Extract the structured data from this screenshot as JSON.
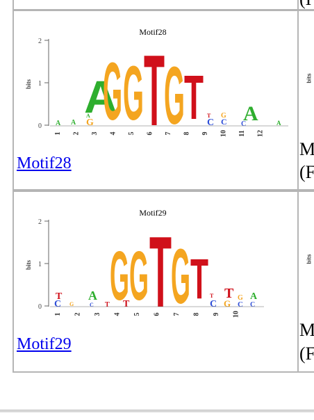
{
  "rows": [
    {
      "logo_title": "Motif28",
      "link_label": "Motif28",
      "axis_label": "bits",
      "y_ticks": [
        "0",
        "1",
        "2"
      ],
      "positions": [
        "1",
        "2",
        "3",
        "4",
        "5",
        "6",
        "7",
        "8",
        "9",
        "10",
        "11",
        "12"
      ],
      "right_line1": "M",
      "right_line2": "(F",
      "right_bits": "bits"
    },
    {
      "logo_title": "Motif29",
      "link_label": "Motif29",
      "axis_label": "bits",
      "y_ticks": [
        "0",
        "1",
        "2"
      ],
      "positions": [
        "1",
        "2",
        "3",
        "4",
        "5",
        "6",
        "7",
        "8",
        "9",
        "10"
      ],
      "right_line1": "M",
      "right_line2": "(F",
      "right_bits": "bits"
    }
  ],
  "top_right_fragment": "(I",
  "colors": {
    "A": "#2eae2e",
    "C": "#2f4fd8",
    "G": "#f4a520",
    "T": "#d0101a",
    "link": "#0000ee"
  }
}
